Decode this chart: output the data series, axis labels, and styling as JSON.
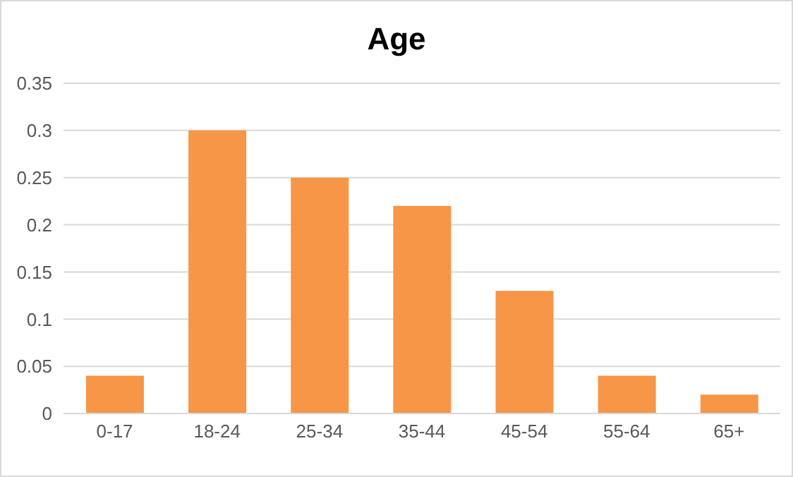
{
  "chart_data": {
    "type": "bar",
    "title": "Age",
    "categories": [
      "0-17",
      "18-24",
      "25-34",
      "35-44",
      "45-54",
      "55-64",
      "65+"
    ],
    "values": [
      0.04,
      0.3,
      0.25,
      0.22,
      0.13,
      0.04,
      0.02
    ],
    "color": "#f79646",
    "ylim": [
      0,
      0.35
    ],
    "yticks": [
      0,
      0.05,
      0.1,
      0.15,
      0.2,
      0.25,
      0.3,
      0.35
    ],
    "grid": "y"
  }
}
